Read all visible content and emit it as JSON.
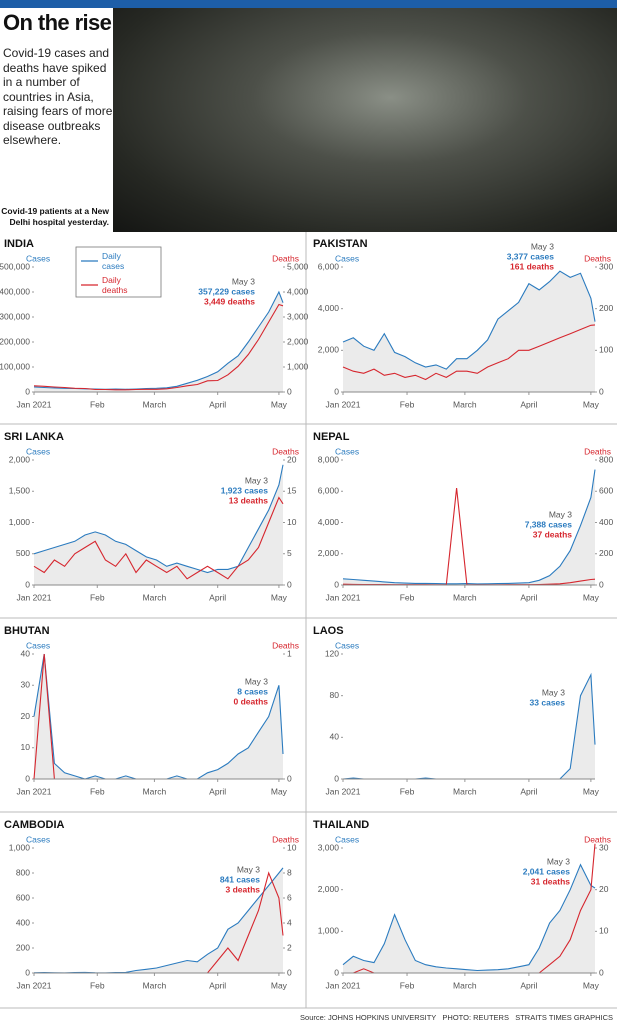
{
  "header": {
    "title": "On the rise",
    "description": "Covid-19 cases and deaths have spiked in a number of countries in Asia, raising fears of more disease outbreaks elsewhere.",
    "photo_caption": "Covid-19 patients at a New Delhi hospital yesterday."
  },
  "chart_data": [
    {
      "type": "line",
      "title": "INDIA",
      "x": [
        1,
        6,
        11,
        16,
        21,
        26,
        31,
        36,
        41,
        46,
        51,
        56,
        61,
        66,
        71,
        76,
        81,
        86,
        91,
        96,
        101,
        106,
        111,
        116,
        121,
        123
      ],
      "xlim": [
        1,
        123
      ],
      "xticks": [
        {
          "value": 1,
          "label": "Jan 2021"
        },
        {
          "value": 32,
          "label": "Feb"
        },
        {
          "value": 60,
          "label": "March"
        },
        {
          "value": 91,
          "label": "April"
        },
        {
          "value": 121,
          "label": "May"
        }
      ],
      "y_label": "Cases",
      "y2_label": "Deaths",
      "ylim": [
        0,
        500000
      ],
      "yticks": [
        0,
        {
          "value": 100000,
          "label": "100,000"
        },
        {
          "value": 200000,
          "label": "200,000"
        },
        {
          "value": 300000,
          "label": "300,000"
        },
        {
          "value": 400000,
          "label": "400,000"
        },
        {
          "value": 500000,
          "label": "500,000"
        }
      ],
      "y2lim": [
        0,
        5000
      ],
      "y2ticks": [
        0,
        {
          "value": 1000,
          "label": "1,000"
        },
        {
          "value": 2000,
          "label": "2,000"
        },
        {
          "value": 3000,
          "label": "3,000"
        },
        {
          "value": 4000,
          "label": "4,000"
        },
        {
          "value": 5000,
          "label": "5,000"
        }
      ],
      "legend": "upper-left",
      "series": [
        {
          "name": "Daily cases",
          "color": "#2b7bbf",
          "values": [
            20000,
            18000,
            16000,
            15000,
            14000,
            13000,
            12000,
            11000,
            12000,
            11000,
            12000,
            14000,
            15000,
            17000,
            23000,
            35000,
            47000,
            62000,
            81000,
            115000,
            145000,
            200000,
            260000,
            320000,
            400000,
            357229
          ]
        },
        {
          "name": "Daily deaths",
          "color": "#d6262e",
          "axis": "y2",
          "values": [
            250,
            230,
            200,
            180,
            150,
            140,
            100,
            100,
            90,
            90,
            100,
            110,
            110,
            130,
            180,
            250,
            300,
            450,
            460,
            690,
            1030,
            1500,
            2100,
            2800,
            3500,
            3449
          ]
        }
      ],
      "annotation": {
        "date": "May 3",
        "cases": "357,229 cases",
        "deaths": "3,449 deaths"
      }
    },
    {
      "type": "line",
      "title": "PAKISTAN",
      "x": [
        1,
        6,
        11,
        16,
        21,
        26,
        31,
        36,
        41,
        46,
        51,
        56,
        61,
        66,
        71,
        76,
        81,
        86,
        91,
        96,
        101,
        106,
        111,
        116,
        121,
        123
      ],
      "xlim": [
        1,
        123
      ],
      "xticks": [
        {
          "value": 1,
          "label": "Jan 2021"
        },
        {
          "value": 32,
          "label": "Feb"
        },
        {
          "value": 60,
          "label": "March"
        },
        {
          "value": 91,
          "label": "April"
        },
        {
          "value": 121,
          "label": "May"
        }
      ],
      "y_label": "Cases",
      "y2_label": "Deaths",
      "ylim": [
        0,
        6000
      ],
      "yticks": [
        0,
        {
          "value": 2000,
          "label": "2,000"
        },
        {
          "value": 4000,
          "label": "4,000"
        },
        {
          "value": 6000,
          "label": "6,000"
        }
      ],
      "y2lim": [
        0,
        300
      ],
      "y2ticks": [
        0,
        100,
        200,
        300
      ],
      "series": [
        {
          "color": "#2b7bbf",
          "values": [
            2400,
            2600,
            2200,
            2000,
            2800,
            1900,
            1700,
            1400,
            1200,
            1300,
            1100,
            1600,
            1600,
            2000,
            2500,
            3500,
            3900,
            4300,
            5200,
            4900,
            5300,
            5800,
            5500,
            5700,
            4500,
            3377
          ]
        },
        {
          "color": "#d6262e",
          "axis": "y2",
          "values": [
            60,
            50,
            45,
            55,
            40,
            45,
            35,
            40,
            30,
            45,
            35,
            50,
            50,
            45,
            60,
            70,
            80,
            100,
            100,
            110,
            120,
            130,
            140,
            150,
            160,
            161
          ]
        }
      ],
      "annotation": {
        "date": "May 3",
        "cases": "3,377 cases",
        "deaths": "161 deaths"
      }
    },
    {
      "type": "line",
      "title": "SRI LANKA",
      "x": [
        1,
        6,
        11,
        16,
        21,
        26,
        31,
        36,
        41,
        46,
        51,
        56,
        61,
        66,
        71,
        76,
        81,
        86,
        91,
        96,
        101,
        106,
        111,
        116,
        121,
        123
      ],
      "xlim": [
        1,
        123
      ],
      "xticks": [
        {
          "value": 1,
          "label": "Jan 2021"
        },
        {
          "value": 32,
          "label": "Feb"
        },
        {
          "value": 60,
          "label": "March"
        },
        {
          "value": 91,
          "label": "April"
        },
        {
          "value": 121,
          "label": "May"
        }
      ],
      "y_label": "Cases",
      "y2_label": "Deaths",
      "ylim": [
        0,
        2000
      ],
      "yticks": [
        0,
        500,
        {
          "value": 1000,
          "label": "1,000"
        },
        {
          "value": 1500,
          "label": "1,500"
        },
        {
          "value": 2000,
          "label": "2,000"
        }
      ],
      "y2lim": [
        0,
        20
      ],
      "y2ticks": [
        0,
        5,
        10,
        15,
        20
      ],
      "series": [
        {
          "color": "#2b7bbf",
          "values": [
            500,
            550,
            600,
            650,
            700,
            800,
            850,
            800,
            700,
            650,
            550,
            450,
            400,
            300,
            350,
            300,
            250,
            200,
            250,
            250,
            300,
            600,
            900,
            1200,
            1600,
            1923
          ]
        },
        {
          "color": "#d6262e",
          "axis": "y2",
          "values": [
            3,
            2,
            4,
            3,
            5,
            6,
            7,
            4,
            3,
            5,
            2,
            4,
            3,
            2,
            3,
            1,
            2,
            3,
            2,
            1,
            3,
            4,
            6,
            10,
            14,
            13
          ]
        }
      ],
      "annotation": {
        "date": "May 3",
        "cases": "1,923 cases",
        "deaths": "13 deaths"
      }
    },
    {
      "type": "line",
      "title": "NEPAL",
      "x": [
        1,
        6,
        11,
        16,
        21,
        26,
        31,
        36,
        41,
        46,
        51,
        56,
        61,
        66,
        71,
        76,
        81,
        86,
        91,
        96,
        101,
        106,
        111,
        116,
        121,
        123
      ],
      "xlim": [
        1,
        123
      ],
      "xticks": [
        {
          "value": 1,
          "label": "Jan 2021"
        },
        {
          "value": 32,
          "label": "Feb"
        },
        {
          "value": 60,
          "label": "March"
        },
        {
          "value": 91,
          "label": "April"
        },
        {
          "value": 121,
          "label": "May"
        }
      ],
      "y_label": "Cases",
      "y2_label": "Deaths",
      "ylim": [
        0,
        8000
      ],
      "yticks": [
        0,
        {
          "value": 2000,
          "label": "2,000"
        },
        {
          "value": 4000,
          "label": "4,000"
        },
        {
          "value": 6000,
          "label": "6,000"
        },
        {
          "value": 8000,
          "label": "8,000"
        }
      ],
      "y2lim": [
        0,
        800
      ],
      "y2ticks": [
        0,
        200,
        400,
        600,
        800
      ],
      "series": [
        {
          "color": "#2b7bbf",
          "values": [
            400,
            350,
            300,
            250,
            200,
            150,
            120,
            100,
            100,
            90,
            80,
            80,
            90,
            70,
            80,
            90,
            100,
            120,
            150,
            300,
            600,
            1200,
            2200,
            3800,
            5600,
            7388
          ]
        },
        {
          "color": "#d6262e",
          "axis": "y2",
          "values": [
            5,
            4,
            3,
            3,
            3,
            2,
            2,
            2,
            2,
            1,
            1,
            620,
            2,
            1,
            1,
            1,
            2,
            2,
            2,
            3,
            5,
            8,
            15,
            25,
            35,
            37
          ]
        }
      ],
      "annotation": {
        "date": "May 3",
        "cases": "7,388 cases",
        "deaths": "37 deaths"
      }
    },
    {
      "type": "line",
      "title": "BHUTAN",
      "x": [
        1,
        6,
        11,
        16,
        21,
        26,
        31,
        36,
        41,
        46,
        51,
        56,
        61,
        66,
        71,
        76,
        81,
        86,
        91,
        96,
        101,
        106,
        111,
        116,
        121,
        123
      ],
      "xlim": [
        1,
        123
      ],
      "xticks": [
        {
          "value": 1,
          "label": "Jan 2021"
        },
        {
          "value": 32,
          "label": "Feb"
        },
        {
          "value": 60,
          "label": "March"
        },
        {
          "value": 91,
          "label": "April"
        },
        {
          "value": 121,
          "label": "May"
        }
      ],
      "y_label": "Cases",
      "y2_label": "Deaths",
      "ylim": [
        0,
        40
      ],
      "yticks": [
        0,
        10,
        20,
        30,
        40
      ],
      "y2lim": [
        0,
        1
      ],
      "y2ticks": [
        0,
        1
      ],
      "series": [
        {
          "color": "#2b7bbf",
          "values": [
            20,
            40,
            5,
            2,
            1,
            0,
            1,
            0,
            0,
            1,
            0,
            0,
            0,
            0,
            1,
            0,
            0,
            2,
            3,
            5,
            8,
            10,
            15,
            20,
            30,
            8
          ]
        },
        {
          "color": "#d6262e",
          "axis": "y2",
          "values": [
            0,
            1,
            0,
            0,
            0,
            0,
            0,
            0,
            0,
            0,
            0,
            0,
            0,
            0,
            0,
            0,
            0,
            0,
            0,
            0,
            0,
            0,
            0,
            0,
            0,
            0
          ]
        }
      ],
      "annotation": {
        "date": "May 3",
        "cases": "8 cases",
        "deaths": "0 deaths"
      }
    },
    {
      "type": "line",
      "title": "LAOS",
      "x": [
        1,
        6,
        11,
        16,
        21,
        26,
        31,
        36,
        41,
        46,
        51,
        56,
        61,
        66,
        71,
        76,
        81,
        86,
        91,
        96,
        101,
        106,
        111,
        116,
        121,
        123
      ],
      "xlim": [
        1,
        123
      ],
      "xticks": [
        {
          "value": 1,
          "label": "Jan 2021"
        },
        {
          "value": 32,
          "label": "Feb"
        },
        {
          "value": 60,
          "label": "March"
        },
        {
          "value": 91,
          "label": "April"
        },
        {
          "value": 121,
          "label": "May"
        }
      ],
      "y_label": "Cases",
      "ylim": [
        0,
        120
      ],
      "yticks": [
        0,
        40,
        80,
        120
      ],
      "series": [
        {
          "color": "#2b7bbf",
          "values": [
            0,
            1,
            0,
            0,
            0,
            0,
            0,
            0,
            1,
            0,
            0,
            0,
            0,
            0,
            0,
            0,
            0,
            0,
            0,
            0,
            0,
            0,
            10,
            80,
            100,
            33
          ]
        }
      ],
      "annotation": {
        "date": "May 3",
        "cases": "33 cases"
      }
    },
    {
      "type": "line",
      "title": "CAMBODIA",
      "x": [
        1,
        6,
        11,
        16,
        21,
        26,
        31,
        36,
        41,
        46,
        51,
        56,
        61,
        66,
        71,
        76,
        81,
        86,
        91,
        96,
        101,
        106,
        111,
        116,
        121,
        123
      ],
      "xlim": [
        1,
        123
      ],
      "xticks": [
        {
          "value": 1,
          "label": "Jan 2021"
        },
        {
          "value": 32,
          "label": "Feb"
        },
        {
          "value": 60,
          "label": "March"
        },
        {
          "value": 91,
          "label": "April"
        },
        {
          "value": 121,
          "label": "May"
        }
      ],
      "y_label": "Cases",
      "y2_label": "Deaths",
      "ylim": [
        0,
        1000
      ],
      "yticks": [
        0,
        200,
        400,
        600,
        800,
        {
          "value": 1000,
          "label": "1,000"
        }
      ],
      "y2lim": [
        0,
        10
      ],
      "y2ticks": [
        0,
        2,
        4,
        6,
        8,
        10
      ],
      "series": [
        {
          "color": "#2b7bbf",
          "values": [
            2,
            3,
            2,
            1,
            3,
            5,
            2,
            1,
            3,
            5,
            20,
            30,
            40,
            60,
            80,
            100,
            90,
            150,
            200,
            350,
            400,
            500,
            600,
            700,
            800,
            841
          ]
        },
        {
          "color": "#d6262e",
          "axis": "y2",
          "values": [
            0,
            0,
            0,
            0,
            0,
            0,
            0,
            0,
            0,
            0,
            0,
            0,
            0,
            0,
            0,
            0,
            0,
            0,
            1,
            2,
            1,
            3,
            5,
            8,
            6,
            3
          ]
        }
      ],
      "annotation": {
        "date": "May 3",
        "cases": "841 cases",
        "deaths": "3 deaths"
      }
    },
    {
      "type": "line",
      "title": "THAILAND",
      "x": [
        1,
        6,
        11,
        16,
        21,
        26,
        31,
        36,
        41,
        46,
        51,
        56,
        61,
        66,
        71,
        76,
        81,
        86,
        91,
        96,
        101,
        106,
        111,
        116,
        121,
        123
      ],
      "xlim": [
        1,
        123
      ],
      "xticks": [
        {
          "value": 1,
          "label": "Jan 2021"
        },
        {
          "value": 32,
          "label": "Feb"
        },
        {
          "value": 60,
          "label": "March"
        },
        {
          "value": 91,
          "label": "April"
        },
        {
          "value": 121,
          "label": "May"
        }
      ],
      "y_label": "Cases",
      "y2_label": "Deaths",
      "ylim": [
        0,
        3000
      ],
      "yticks": [
        0,
        {
          "value": 1000,
          "label": "1,000"
        },
        {
          "value": 2000,
          "label": "2,000"
        },
        {
          "value": 3000,
          "label": "3,000"
        }
      ],
      "y2lim": [
        0,
        30
      ],
      "y2ticks": [
        0,
        10,
        20,
        30
      ],
      "series": [
        {
          "color": "#2b7bbf",
          "values": [
            200,
            400,
            300,
            250,
            700,
            1400,
            800,
            300,
            200,
            150,
            120,
            100,
            80,
            60,
            70,
            80,
            100,
            150,
            200,
            600,
            1200,
            1500,
            2000,
            2600,
            2100,
            2041
          ]
        },
        {
          "color": "#d6262e",
          "axis": "y2",
          "values": [
            0,
            0,
            1,
            0,
            0,
            0,
            0,
            0,
            0,
            0,
            0,
            0,
            0,
            0,
            0,
            0,
            0,
            0,
            0,
            0,
            2,
            4,
            8,
            15,
            20,
            31
          ]
        }
      ],
      "annotation": {
        "date": "May 3",
        "cases": "2,041 cases",
        "deaths": "31 deaths"
      }
    }
  ],
  "source": "Source: JOHNS HOPKINS UNIVERSITY   PHOTO: REUTERS   STRAITS TIMES GRAPHICS"
}
